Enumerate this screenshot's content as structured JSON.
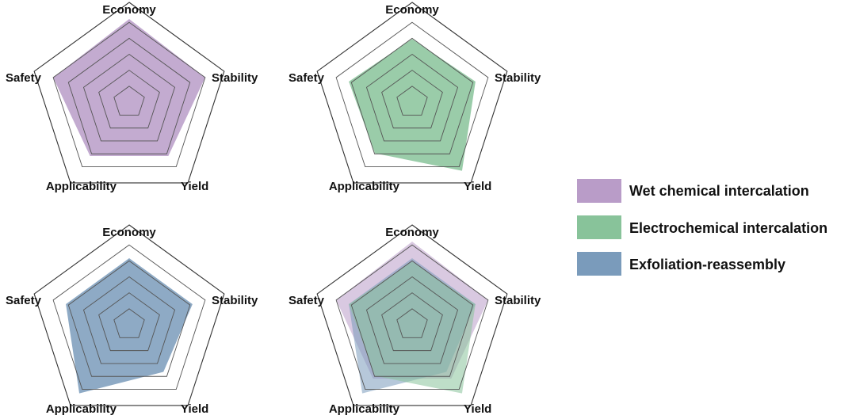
{
  "chart_data": {
    "type": "radar",
    "axes": [
      "Economy",
      "Stability",
      "Yield",
      "Applicability",
      "Safety"
    ],
    "range": [
      0,
      6
    ],
    "rings": 5,
    "series": [
      {
        "name": "Wet chemical intercalation",
        "color": "#b99cc8",
        "values": [
          5.0,
          4.8,
          4.0,
          4.0,
          4.8
        ]
      },
      {
        "name": "Electrochemical intercalation",
        "color": "#88c39a",
        "values": [
          3.8,
          4.0,
          5.1,
          3.8,
          4.0
        ]
      },
      {
        "name": "Exfoliation-reassembly",
        "color": "#7a9bbb",
        "values": [
          4.0,
          4.0,
          3.5,
          5.1,
          4.0
        ]
      }
    ],
    "panels": [
      {
        "series": [
          0
        ],
        "labels": [
          "Economy",
          "Stability",
          "Yield",
          "Applicability",
          "Safety"
        ]
      },
      {
        "series": [
          1
        ],
        "labels": [
          "Economy",
          "Stability",
          "Yield",
          "Applicability",
          "Safety"
        ]
      },
      {
        "series": [
          2
        ],
        "labels": [
          "Economy",
          "Stability",
          "Yield",
          "Applicability",
          "Safety"
        ]
      },
      {
        "series": [
          0,
          2,
          1
        ],
        "labels": [
          "Economy",
          "Stability",
          "Yield",
          "Applicability",
          "Safety"
        ]
      }
    ],
    "legend": {
      "position": "right",
      "items": [
        "Wet chemical intercalation",
        "Electrochemical intercalation",
        "Exfoliation-reassembly"
      ]
    }
  }
}
